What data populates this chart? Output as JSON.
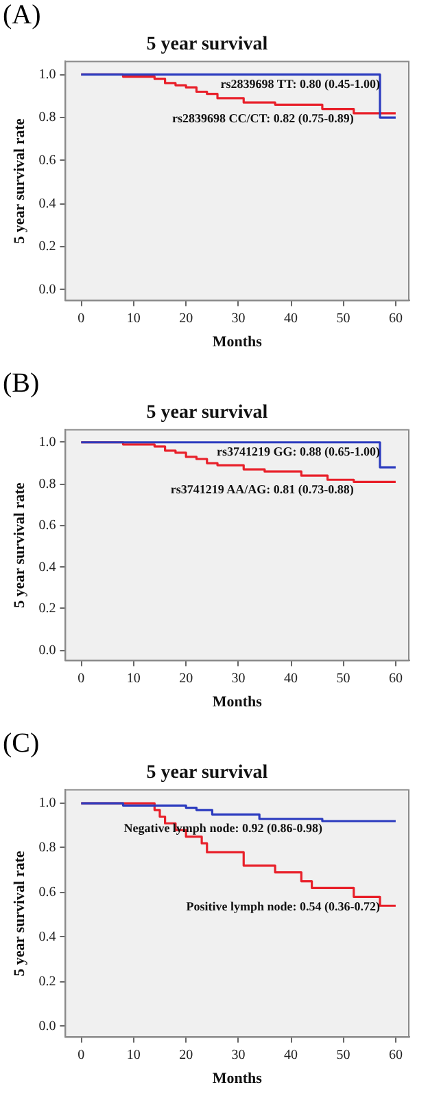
{
  "chart_data": [
    {
      "type": "step",
      "title": "5 year survival",
      "xlabel": "Months",
      "ylabel": "5 year survival rate",
      "annotations": [
        "(A)"
      ],
      "xlim": [
        -3,
        62.5
      ],
      "xticks": [
        0,
        10,
        20,
        30,
        40,
        50,
        60
      ],
      "ylim": [
        -0.05,
        1.06
      ],
      "yticks": [
        {
          "value": 0,
          "label": "0.0"
        },
        {
          "value": 0.2,
          "label": "0.2"
        },
        {
          "value": 0.4,
          "label": "0.4"
        },
        {
          "value": 0.6,
          "label": "0.6"
        },
        {
          "value": 0.8,
          "label": "0.8"
        },
        {
          "value": 1,
          "label": "1.0"
        }
      ],
      "grid": false,
      "legend": false,
      "series": [
        {
          "name": "rs2839698 TT: 0.80 (0.45-1.00)",
          "color": "#2b3bbf",
          "x": [
            0,
            57,
            60
          ],
          "values": [
            1,
            0.8,
            0.8
          ]
        },
        {
          "name": "rs2839698 CC/CT: 0.82 (0.75-0.89)",
          "color": "#e8202a",
          "x": [
            0,
            8,
            14,
            16,
            18,
            20,
            22,
            24,
            26,
            31,
            37,
            46,
            52,
            60
          ],
          "values": [
            1,
            0.99,
            0.98,
            0.96,
            0.95,
            0.94,
            0.92,
            0.91,
            0.89,
            0.87,
            0.86,
            0.84,
            0.82,
            0.82
          ]
        }
      ]
    },
    {
      "type": "step",
      "title": "5 year survival",
      "xlabel": "Months",
      "ylabel": "5 year survival rate",
      "annotations": [
        "(B)"
      ],
      "xlim": [
        -3,
        62.5
      ],
      "xticks": [
        0,
        10,
        20,
        30,
        40,
        50,
        60
      ],
      "ylim": [
        -0.05,
        1.06
      ],
      "yticks": [
        {
          "value": 0,
          "label": "0.0"
        },
        {
          "value": 0.2,
          "label": "0.2"
        },
        {
          "value": 0.4,
          "label": "0.4"
        },
        {
          "value": 0.6,
          "label": "0.6"
        },
        {
          "value": 0.8,
          "label": "0.8"
        },
        {
          "value": 1,
          "label": "1.0"
        }
      ],
      "grid": false,
      "legend": false,
      "series": [
        {
          "name": "rs3741219 GG: 0.88 (0.65-1.00)",
          "color": "#2b3bbf",
          "x": [
            0,
            57,
            60
          ],
          "values": [
            1,
            0.88,
            0.88
          ]
        },
        {
          "name": "rs3741219 AA/AG: 0.81 (0.73-0.88)",
          "color": "#e8202a",
          "x": [
            0,
            8,
            14,
            16,
            18,
            20,
            22,
            24,
            26,
            31,
            35,
            42,
            47,
            52,
            60
          ],
          "values": [
            1,
            0.99,
            0.98,
            0.96,
            0.95,
            0.93,
            0.92,
            0.9,
            0.89,
            0.87,
            0.86,
            0.84,
            0.82,
            0.81,
            0.81
          ]
        }
      ]
    },
    {
      "type": "step",
      "title": "5 year survival",
      "xlabel": "Months",
      "ylabel": "5 year survival rate",
      "annotations": [
        "(C)"
      ],
      "xlim": [
        -3,
        62.5
      ],
      "xticks": [
        0,
        10,
        20,
        30,
        40,
        50,
        60
      ],
      "ylim": [
        -0.05,
        1.06
      ],
      "yticks": [
        {
          "value": 0,
          "label": "0.0"
        },
        {
          "value": 0.2,
          "label": "0.2"
        },
        {
          "value": 0.4,
          "label": "0.4"
        },
        {
          "value": 0.6,
          "label": "0.6"
        },
        {
          "value": 0.8,
          "label": "0.8"
        },
        {
          "value": 1,
          "label": "1.0"
        }
      ],
      "grid": false,
      "legend": false,
      "series": [
        {
          "name": "Negative lymph node: 0.92 (0.86-0.98)",
          "color": "#2b3bbf",
          "x": [
            0,
            8,
            20,
            22,
            25,
            34,
            46,
            60
          ],
          "values": [
            1,
            0.99,
            0.98,
            0.97,
            0.95,
            0.93,
            0.92,
            0.92
          ]
        },
        {
          "name": "Positive lymph node: 0.54 (0.36-0.72)",
          "color": "#e8202a",
          "x": [
            0,
            14,
            15,
            16,
            18,
            20,
            23,
            24,
            31,
            37,
            42,
            44,
            52,
            57,
            60
          ],
          "values": [
            1,
            0.97,
            0.94,
            0.91,
            0.88,
            0.85,
            0.82,
            0.78,
            0.72,
            0.69,
            0.65,
            0.62,
            0.58,
            0.54,
            0.54
          ]
        }
      ]
    }
  ]
}
